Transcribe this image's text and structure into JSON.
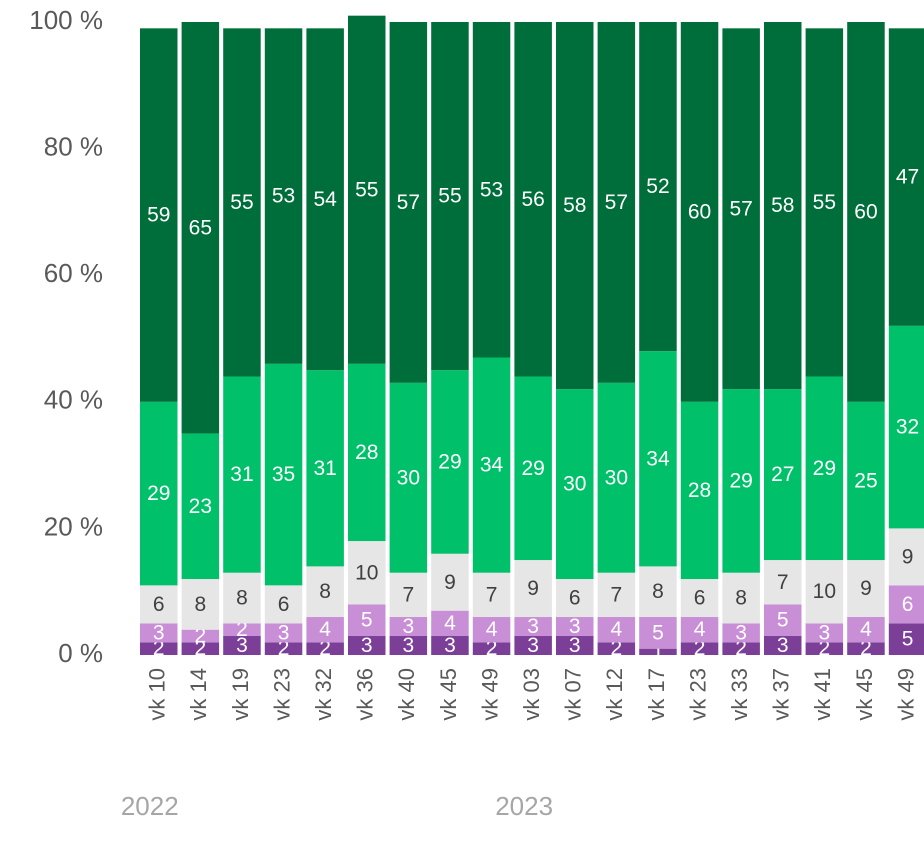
{
  "chart_data": {
    "type": "stacked_bar",
    "categories": [
      "vk 10",
      "vk 14",
      "vk 19",
      "vk 23",
      "vk 32",
      "vk 36",
      "vk 40",
      "vk 45",
      "vk 49",
      "vk 03",
      "vk 07",
      "vk 12",
      "vk 17",
      "vk 23",
      "vk 33",
      "vk 37",
      "vk 41",
      "vk 45",
      "vk 49"
    ],
    "years": [
      "2022",
      null,
      null,
      null,
      null,
      null,
      null,
      null,
      null,
      "2023",
      null,
      null,
      null,
      null,
      null,
      null,
      null,
      null,
      null
    ],
    "series": [
      {
        "color": "#7b3f98",
        "label_color": "#ffffff",
        "values": [
          2,
          2,
          3,
          2,
          2,
          3,
          3,
          3,
          2,
          3,
          3,
          2,
          1,
          2,
          2,
          3,
          2,
          2,
          5
        ]
      },
      {
        "color": "#c88fd6",
        "label_color": "#ffffff",
        "values": [
          3,
          2,
          2,
          3,
          4,
          5,
          3,
          4,
          4,
          3,
          3,
          4,
          5,
          4,
          3,
          5,
          3,
          4,
          6
        ]
      },
      {
        "color": "#e6e6e6",
        "label_color": "#404040",
        "values": [
          6,
          8,
          8,
          6,
          8,
          10,
          7,
          9,
          7,
          9,
          6,
          7,
          8,
          6,
          8,
          7,
          10,
          9,
          9
        ]
      },
      {
        "color": "#00c16a",
        "label_color": "#ffffff",
        "values": [
          29,
          23,
          31,
          35,
          31,
          28,
          30,
          29,
          34,
          29,
          30,
          30,
          34,
          28,
          29,
          27,
          29,
          25,
          32
        ]
      },
      {
        "color": "#006e3a",
        "label_color": "#ffffff",
        "values": [
          59,
          65,
          55,
          53,
          54,
          55,
          57,
          55,
          53,
          56,
          58,
          57,
          52,
          60,
          57,
          58,
          55,
          60,
          47
        ]
      }
    ],
    "ylim": [
      0,
      100
    ],
    "yticks": [
      {
        "value": 0,
        "label": "0 %"
      },
      {
        "value": 20,
        "label": "20 %"
      },
      {
        "value": 40,
        "label": "40 %"
      },
      {
        "value": 60,
        "label": "60 %"
      },
      {
        "value": 80,
        "label": "80 %"
      },
      {
        "value": 100,
        "label": "100 %"
      }
    ]
  }
}
